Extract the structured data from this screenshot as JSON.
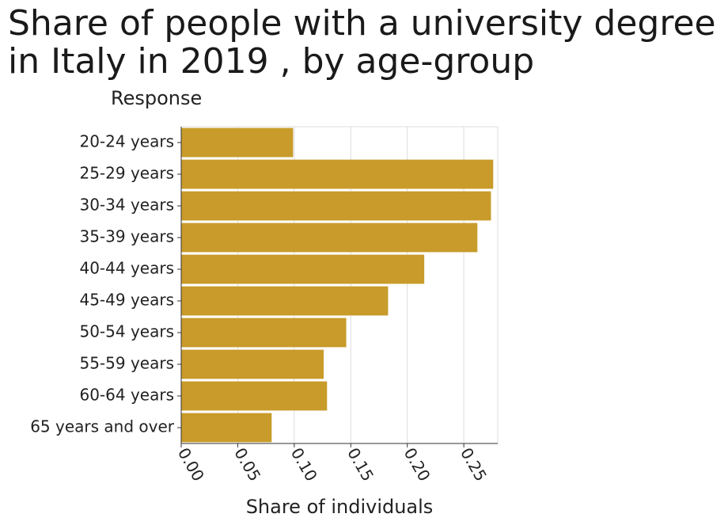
{
  "chart_data": {
    "type": "bar",
    "orientation": "horizontal",
    "title_lines": [
      "Share of people with a university degree",
      "in Italy in 2019 , by age-group"
    ],
    "ylabel": "Response",
    "xlabel": "Share of individuals",
    "categories": [
      "20-24 years",
      "25-29 years",
      "30-34 years",
      "35-39 years",
      "40-44 years",
      "45-49 years",
      "50-54 years",
      "55-59 years",
      "60-64 years",
      "65 years and over"
    ],
    "values": [
      0.099,
      0.276,
      0.274,
      0.262,
      0.215,
      0.183,
      0.146,
      0.126,
      0.129,
      0.08
    ],
    "xlim": [
      0,
      0.28
    ],
    "xticks": [
      "0.00",
      "0.05",
      "0.10",
      "0.15",
      "0.20",
      "0.25"
    ],
    "xtick_values": [
      0,
      0.05,
      0.1,
      0.15,
      0.2,
      0.25
    ],
    "grid": "vertical",
    "bar_color": "#c89b2a"
  }
}
